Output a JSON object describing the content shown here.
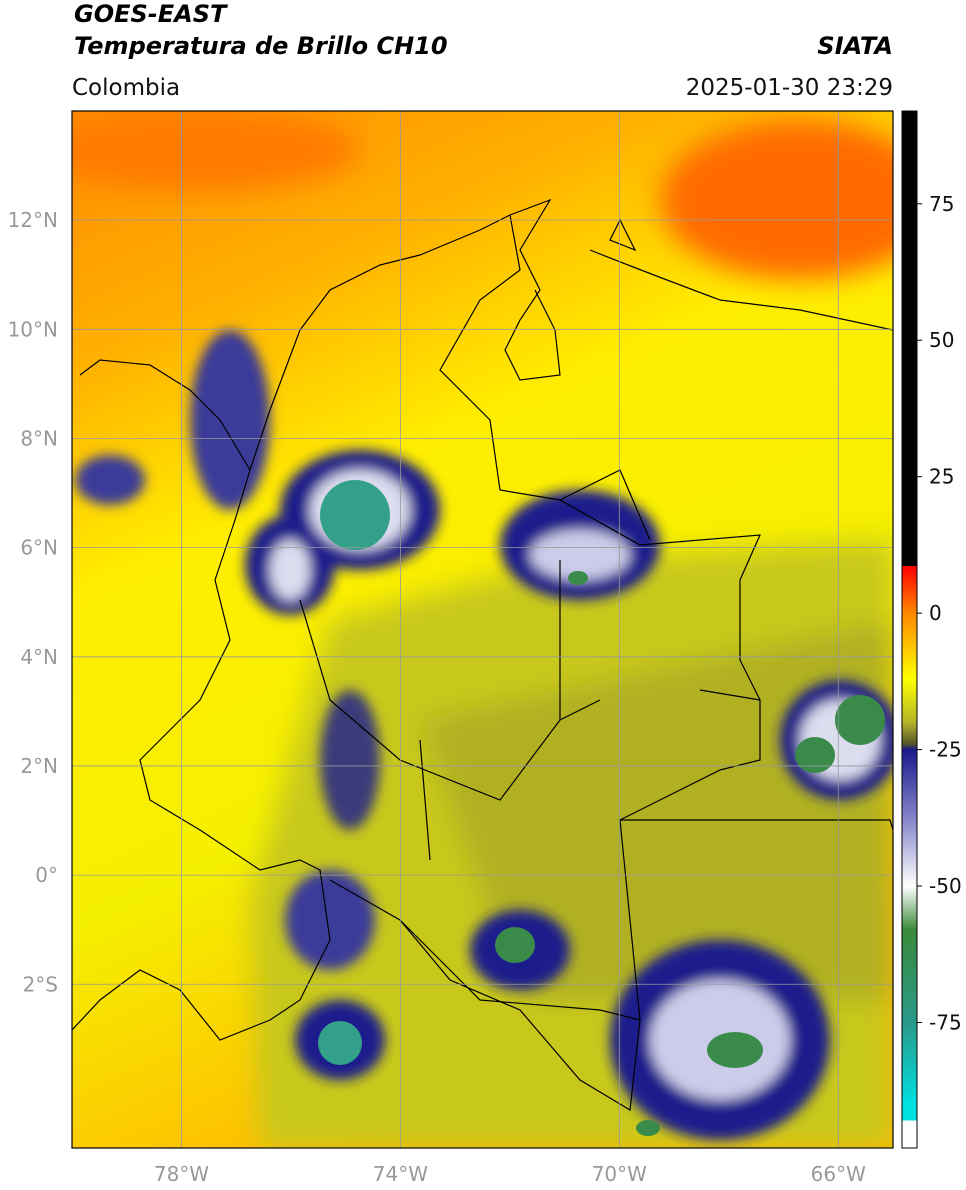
{
  "header": {
    "title": "GOES-EAST",
    "product": "Temperatura de Brillo CH10",
    "source": "SIATA",
    "region": "Colombia",
    "datetime": "2025-01-30 23:29"
  },
  "map": {
    "xlim": [
      -80,
      -65
    ],
    "ylim": [
      -5,
      14
    ],
    "xticks": [
      {
        "value": -78,
        "label": "78°W"
      },
      {
        "value": -74,
        "label": "74°W"
      },
      {
        "value": -70,
        "label": "70°W"
      },
      {
        "value": -66,
        "label": "66°W"
      }
    ],
    "yticks": [
      {
        "value": 12,
        "label": "12°N"
      },
      {
        "value": 10,
        "label": "10°N"
      },
      {
        "value": 8,
        "label": "8°N"
      },
      {
        "value": 6,
        "label": "6°N"
      },
      {
        "value": 4,
        "label": "4°N"
      },
      {
        "value": 2,
        "label": "2°N"
      },
      {
        "value": 0,
        "label": "0°"
      },
      {
        "value": -2,
        "label": "2°S"
      }
    ],
    "grid": true,
    "grid_color": "#999999"
  },
  "colorbar": {
    "lim": [
      -98,
      92
    ],
    "ticks": [
      75,
      50,
      25,
      0,
      -25,
      -50,
      -75
    ],
    "stops": [
      {
        "value": 92,
        "color": "#000000"
      },
      {
        "value": 8.6,
        "color": "#000000"
      },
      {
        "value": 8.6,
        "color": "#ff0000"
      },
      {
        "value": 0,
        "color": "#ff8800"
      },
      {
        "value": -12,
        "color": "#ffff00"
      },
      {
        "value": -20,
        "color": "#b5b52a"
      },
      {
        "value": -24,
        "color": "#55552a"
      },
      {
        "value": -25,
        "color": "#1a1a8c"
      },
      {
        "value": -38,
        "color": "#8888cc"
      },
      {
        "value": -50,
        "color": "#ffffff"
      },
      {
        "value": -58,
        "color": "#3a8a3a"
      },
      {
        "value": -75,
        "color": "#2a9a8a"
      },
      {
        "value": -90,
        "color": "#00e0e0"
      },
      {
        "value": -93,
        "color": "#00e0e0"
      },
      {
        "value": -93,
        "color": "#ffffff"
      },
      {
        "value": -98,
        "color": "#ffffff"
      }
    ]
  }
}
